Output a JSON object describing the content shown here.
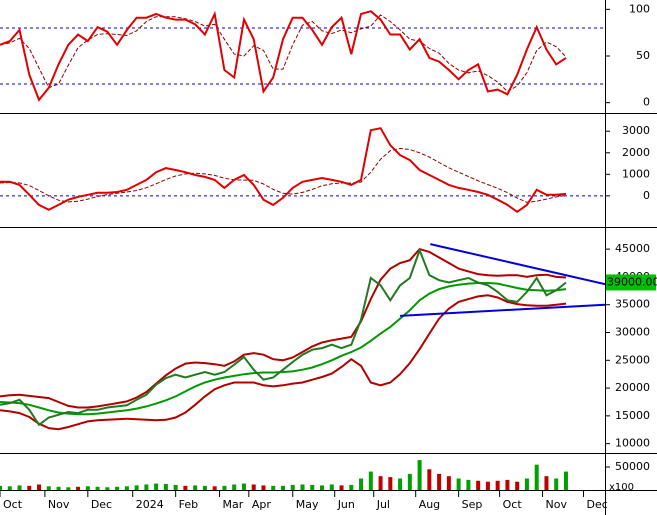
{
  "chart_data": [
    {
      "type": "line",
      "ylim": [
        -10,
        110
      ],
      "yticks": [
        0,
        50,
        100
      ],
      "hlines": [
        20,
        80
      ],
      "hline_color": "#0000cc",
      "series": [
        {
          "color": "#8b0000",
          "dash": true,
          "values": [
            62,
            64,
            69,
            58,
            37,
            16,
            20,
            40,
            59,
            67,
            73,
            74,
            73,
            72,
            77,
            87,
            92,
            92,
            92,
            90,
            87,
            82,
            84,
            68,
            52,
            50,
            61,
            56,
            36,
            36,
            62,
            83,
            87,
            77,
            74,
            78,
            75,
            79,
            82,
            94,
            87,
            78,
            68,
            66,
            58,
            53,
            42,
            35,
            32,
            34,
            29,
            22,
            12,
            18,
            32,
            56,
            65,
            60,
            49
          ]
        },
        {
          "color": "#e00000",
          "dash": false,
          "values": [
            62,
            66,
            78,
            30,
            3,
            16,
            41,
            62,
            73,
            66,
            81,
            76,
            62,
            78,
            91,
            91,
            95,
            91,
            89,
            89,
            84,
            73,
            95,
            35,
            27,
            89,
            68,
            12,
            27,
            68,
            91,
            91,
            78,
            62,
            81,
            91,
            52,
            95,
            98,
            89,
            73,
            73,
            57,
            68,
            48,
            44,
            35,
            25,
            35,
            41,
            12,
            14,
            9,
            30,
            57,
            81,
            57,
            41,
            48
          ]
        }
      ]
    },
    {
      "type": "line",
      "ylim": [
        -1400,
        3800
      ],
      "yticks": [
        0,
        1000,
        2000,
        3000
      ],
      "hlines": [
        0
      ],
      "hline_color": "#0000cc",
      "series": [
        {
          "color": "#8b0000",
          "dash": true,
          "values": [
            600,
            620,
            600,
            480,
            250,
            0,
            -200,
            -280,
            -250,
            -150,
            -30,
            60,
            120,
            180,
            250,
            380,
            560,
            760,
            920,
            1020,
            1050,
            1020,
            950,
            820,
            740,
            730,
            720,
            550,
            300,
            120,
            80,
            160,
            300,
            470,
            560,
            600,
            590,
            640,
            1100,
            1700,
            2100,
            2200,
            2150,
            2000,
            1800,
            1550,
            1300,
            1100,
            900,
            700,
            520,
            350,
            150,
            -100,
            -300,
            -250,
            -150,
            -50,
            20
          ]
        },
        {
          "color": "#e00000",
          "dash": false,
          "values": [
            650,
            650,
            510,
            50,
            -420,
            -650,
            -420,
            -180,
            -50,
            50,
            140,
            140,
            180,
            280,
            510,
            740,
            1100,
            1290,
            1200,
            1100,
            970,
            880,
            740,
            370,
            740,
            970,
            510,
            -180,
            -420,
            -90,
            370,
            650,
            740,
            830,
            740,
            650,
            510,
            740,
            3050,
            3140,
            2350,
            1890,
            1660,
            1200,
            970,
            740,
            510,
            370,
            280,
            180,
            50,
            -180,
            -420,
            -740,
            -420,
            280,
            50,
            50,
            90
          ]
        }
      ]
    },
    {
      "type": "line",
      "ylim": [
        8500,
        48800
      ],
      "yticks": [
        10000,
        15000,
        20000,
        25000,
        30000,
        35000,
        40000,
        45000
      ],
      "last_label": {
        "value": 39000,
        "label": "39000.00"
      },
      "last_label_color": "#00c000",
      "series": [
        {
          "color": "#b00000",
          "dash": false,
          "values": [
            18500,
            18700,
            18800,
            18600,
            18400,
            18200,
            17500,
            16800,
            16500,
            16500,
            16700,
            17000,
            17300,
            17600,
            18300,
            19300,
            20800,
            22300,
            23500,
            24400,
            24600,
            24500,
            24300,
            24000,
            24800,
            26000,
            26300,
            26000,
            25200,
            25000,
            25500,
            26500,
            27500,
            28200,
            28600,
            28900,
            29200,
            32000,
            36000,
            39500,
            41500,
            42500,
            43000,
            45000,
            44500,
            43500,
            42500,
            41500,
            41000,
            40500,
            40300,
            40200,
            40300,
            40300,
            40000,
            40300,
            40400,
            40000,
            39900
          ]
        },
        {
          "color": "#b00000",
          "dash": false,
          "values": [
            16000,
            15800,
            15500,
            14800,
            13600,
            12800,
            12600,
            13000,
            13500,
            14000,
            14200,
            14300,
            14400,
            14500,
            14400,
            14300,
            14200,
            14300,
            14700,
            15600,
            17000,
            18500,
            19800,
            20500,
            21000,
            21000,
            21000,
            20500,
            20300,
            20500,
            20800,
            21000,
            21500,
            22000,
            22600,
            23800,
            25200,
            24000,
            21000,
            20500,
            21000,
            22500,
            24500,
            27000,
            29800,
            32500,
            34300,
            35500,
            36000,
            36500,
            36700,
            36300,
            35500,
            35100,
            34900,
            34800,
            34800,
            35000,
            35200
          ]
        },
        {
          "color": "#009900",
          "dash": false,
          "values": [
            17500,
            17400,
            17300,
            17000,
            16500,
            16000,
            15600,
            15400,
            15300,
            15300,
            15400,
            15600,
            15800,
            16000,
            16300,
            16700,
            17200,
            17800,
            18500,
            19400,
            20300,
            21000,
            21500,
            21900,
            22200,
            22500,
            22700,
            22800,
            22800,
            22900,
            23000,
            23300,
            23700,
            24300,
            25000,
            25800,
            26500,
            27300,
            28500,
            29800,
            31000,
            32500,
            34000,
            35800,
            37000,
            37800,
            38300,
            38600,
            38800,
            38900,
            38900,
            38800,
            38400,
            38000,
            37700,
            37600,
            37500,
            37600,
            37800
          ]
        },
        {
          "color": "#207a20",
          "dash": false,
          "values": [
            17000,
            17300,
            17900,
            16100,
            13400,
            14700,
            15200,
            15700,
            15500,
            16100,
            16100,
            16500,
            16700,
            16900,
            17900,
            18800,
            20600,
            21800,
            22400,
            21900,
            22400,
            22900,
            22400,
            22900,
            24200,
            25600,
            23300,
            21500,
            21900,
            23300,
            24700,
            26000,
            26900,
            27200,
            27800,
            27200,
            27800,
            32300,
            39800,
            38500,
            35800,
            38500,
            39800,
            44800,
            40300,
            39400,
            39000,
            39400,
            39800,
            39000,
            38500,
            37300,
            35800,
            35500,
            37300,
            39800,
            36700,
            37600,
            39000
          ]
        }
      ],
      "trendlines": [
        {
          "color": "#0000dd",
          "x": [
            44.1,
            62
          ],
          "y": [
            45900,
            38700
          ]
        },
        {
          "color": "#0000dd",
          "x": [
            41,
            62
          ],
          "y": [
            33000,
            35000
          ]
        }
      ]
    },
    {
      "type": "bar",
      "ylim": [
        0,
        76000
      ],
      "yticks": [
        50000
      ],
      "y_unit": "x100",
      "up_color": "#00a000",
      "down_color": "#c00000",
      "values": [
        9000,
        8000,
        10000,
        9000,
        12000,
        8000,
        7000,
        6000,
        7000,
        8000,
        7000,
        6000,
        7000,
        8000,
        10000,
        12000,
        14000,
        13000,
        11000,
        9000,
        10000,
        9000,
        8000,
        9000,
        12000,
        14000,
        12000,
        10000,
        9000,
        9000,
        11000,
        12000,
        11000,
        10000,
        12000,
        10000,
        11000,
        25000,
        40000,
        30000,
        28000,
        25000,
        35000,
        65000,
        45000,
        35000,
        30000,
        25000,
        22000,
        20000,
        18000,
        20000,
        22000,
        18000,
        25000,
        55000,
        30000,
        25000,
        40000
      ],
      "xlim": [
        0,
        62
      ],
      "xticks": [
        {
          "value": 0,
          "label": "Oct"
        },
        {
          "value": 4.6,
          "label": "Nov"
        },
        {
          "value": 9,
          "label": "Dec"
        },
        {
          "value": 13.6,
          "label": "2024"
        },
        {
          "value": 18,
          "label": "Feb"
        },
        {
          "value": 22.5,
          "label": "Mar"
        },
        {
          "value": 25.5,
          "label": "Apr"
        },
        {
          "value": 30,
          "label": "May"
        },
        {
          "value": 34.3,
          "label": "Jun"
        },
        {
          "value": 38.3,
          "label": "Jul"
        },
        {
          "value": 42.6,
          "label": "Aug"
        },
        {
          "value": 47,
          "label": "Sep"
        },
        {
          "value": 51.2,
          "label": "Oct"
        },
        {
          "value": 55.6,
          "label": "Nov"
        },
        {
          "value": 59.8,
          "label": "Dec"
        }
      ]
    }
  ]
}
